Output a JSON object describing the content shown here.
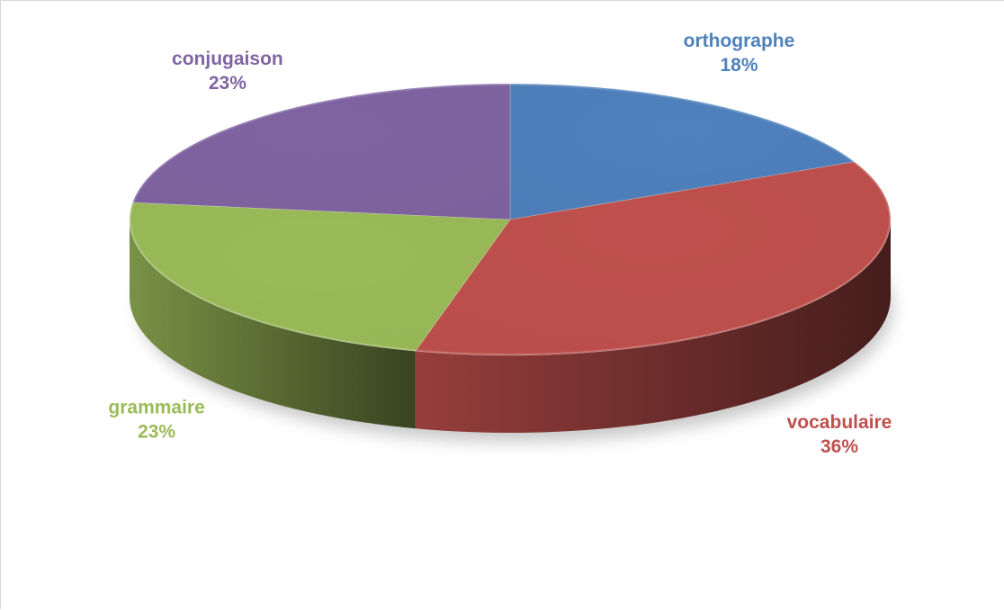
{
  "chart_data": {
    "type": "pie",
    "style": "3d",
    "title": "",
    "categories": [
      "orthographe",
      "vocabulaire",
      "grammaire",
      "conjugaison"
    ],
    "values": [
      18,
      36,
      23,
      23
    ],
    "unit": "%",
    "percent_labels": [
      "18%",
      "36%",
      "23%",
      "23%"
    ],
    "colors": [
      "#4f81bd",
      "#c0504d",
      "#9bbb59",
      "#8064a2"
    ],
    "start_angle_deg": 0,
    "direction": "clockwise",
    "legend": "none",
    "data_labels": "outside, category name and percent"
  }
}
